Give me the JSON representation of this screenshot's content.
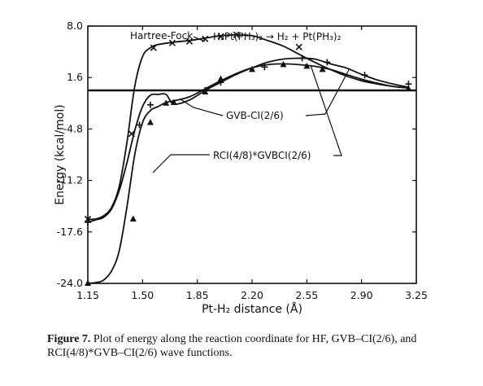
{
  "chart_data": {
    "type": "line",
    "xlabel": "Pt-H₂ distance (Å)",
    "ylabel": "Energy (kcal/mol)",
    "xlim": [
      1.15,
      3.25
    ],
    "ylim": [
      -24.0,
      8.0
    ],
    "x_ticks": [
      "1.15",
      "1.50",
      "1.85",
      "2.20",
      "2.55",
      "2.90",
      "3.25"
    ],
    "y_ticks": [
      "8.0",
      "1.6",
      "-4.8",
      "-11.2",
      "-17.6",
      "-24.0"
    ],
    "reference_line_y": 0.0,
    "reaction_label": "H₂Pt(PH₃)₂ → H₂ + Pt(PH₃)₂",
    "series": [
      {
        "name": "Hartree-Fock",
        "marker": "x",
        "x": [
          1.15,
          1.2,
          1.25,
          1.3,
          1.35,
          1.4,
          1.45,
          1.5,
          1.55,
          1.6,
          1.7,
          1.8,
          1.9,
          2.0,
          2.1,
          2.2,
          2.3,
          2.4,
          2.5,
          2.6,
          2.7,
          2.8,
          2.9,
          3.0,
          3.1,
          3.2
        ],
        "y": [
          -16.0,
          -16.0,
          -15.6,
          -14.6,
          -12.0,
          -6.5,
          0.5,
          4.2,
          5.3,
          5.7,
          6.0,
          6.2,
          6.5,
          6.8,
          6.9,
          6.8,
          6.2,
          5.5,
          4.5,
          3.5,
          2.6,
          1.8,
          1.2,
          0.8,
          0.5,
          0.3
        ],
        "marker_x": [
          1.15,
          1.43,
          1.57,
          1.69,
          1.8,
          1.9,
          2.0,
          2.1,
          2.5
        ],
        "marker_y": [
          -16.0,
          -5.4,
          5.3,
          5.9,
          6.1,
          6.4,
          6.7,
          6.9,
          5.4
        ]
      },
      {
        "name": "GVB-CI(2/6)",
        "marker": "+",
        "x": [
          1.15,
          1.2,
          1.25,
          1.3,
          1.35,
          1.4,
          1.45,
          1.5,
          1.55,
          1.6,
          1.65,
          1.7,
          1.8,
          1.9,
          2.0,
          2.1,
          2.2,
          2.3,
          2.4,
          2.5,
          2.6,
          2.7,
          2.8,
          2.9,
          3.0,
          3.1,
          3.2
        ],
        "y": [
          -16.4,
          -16.1,
          -15.8,
          -14.8,
          -12.5,
          -9.0,
          -5.0,
          -2.0,
          -0.6,
          -0.5,
          -0.5,
          -1.7,
          -1.2,
          0.0,
          1.0,
          2.0,
          2.8,
          3.5,
          3.9,
          4.0,
          3.9,
          3.3,
          2.8,
          2.0,
          1.3,
          0.8,
          0.4
        ],
        "marker_x": [
          1.15,
          1.48,
          1.55,
          1.9,
          2.0,
          2.28,
          2.52,
          2.68,
          2.92,
          3.2
        ],
        "marker_y": [
          -16.4,
          -4.3,
          -1.8,
          0.0,
          1.0,
          2.9,
          4.0,
          3.5,
          1.9,
          0.8
        ]
      },
      {
        "name": "RCI(4/8)*GVBCI(2/6)",
        "marker": "triangle",
        "x": [
          1.15,
          1.2,
          1.25,
          1.3,
          1.35,
          1.4,
          1.45,
          1.5,
          1.55,
          1.6,
          1.65,
          1.7,
          1.8,
          1.9,
          2.0,
          2.1,
          2.2,
          2.3,
          2.4,
          2.5,
          2.6,
          2.7,
          2.8,
          2.9,
          3.0,
          3.1,
          3.2
        ],
        "y": [
          -24.0,
          -23.9,
          -23.6,
          -22.5,
          -20.0,
          -14.5,
          -8.0,
          -4.0,
          -2.5,
          -2.0,
          -1.5,
          -1.3,
          -0.8,
          0.2,
          1.2,
          2.1,
          2.8,
          3.2,
          3.3,
          3.2,
          3.0,
          2.6,
          2.0,
          1.4,
          0.9,
          0.5,
          0.3
        ],
        "marker_x": [
          1.15,
          1.44,
          1.55,
          1.65,
          1.7,
          1.9,
          2.0,
          2.2,
          2.4,
          2.55,
          2.65,
          3.2
        ],
        "marker_y": [
          -24.0,
          -16.0,
          -4.0,
          -1.6,
          -1.5,
          -0.2,
          1.4,
          2.6,
          3.2,
          3.0,
          2.6,
          0.2
        ]
      }
    ]
  },
  "caption": {
    "label": "Figure 7.",
    "text": "Plot of energy along the reaction coordinate for HF, GVB–CI(2/6), and RCI(4/8)*GVB–CI(2/6) wave functions."
  }
}
